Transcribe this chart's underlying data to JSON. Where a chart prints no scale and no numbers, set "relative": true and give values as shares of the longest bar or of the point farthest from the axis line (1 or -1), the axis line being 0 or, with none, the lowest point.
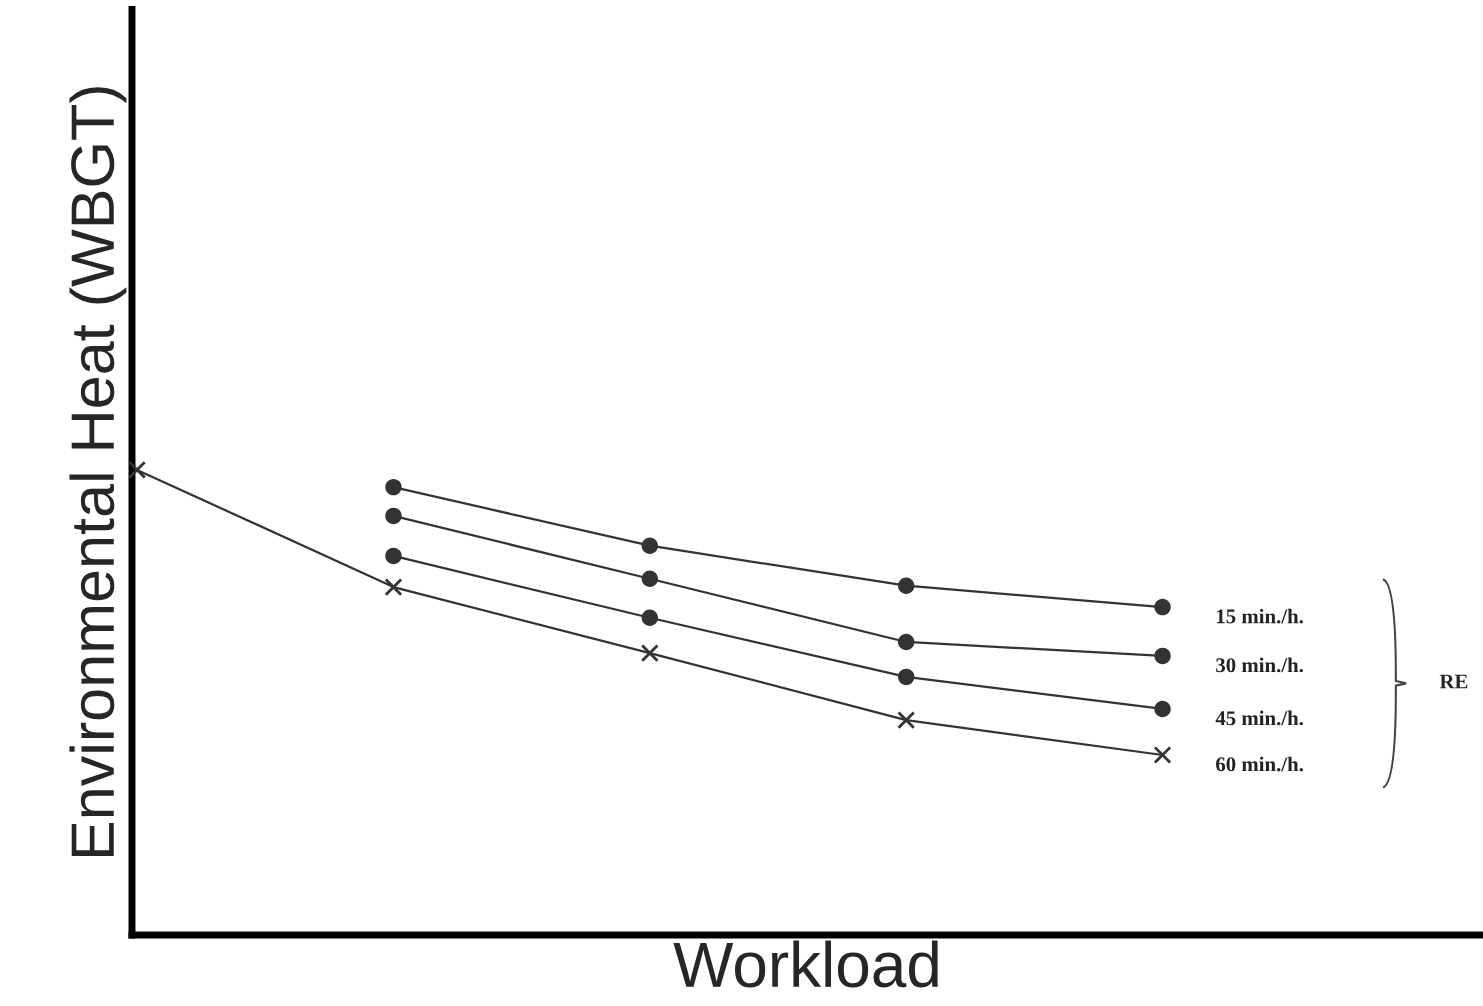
{
  "chart_data": {
    "type": "line",
    "relative": true,
    "xlabel": "Workload",
    "ylabel": "Environmental Heat (WBGT)",
    "categories": [
      null,
      null,
      null,
      null,
      null
    ],
    "series": [
      {
        "name": "15 min./h.",
        "color": "#333333",
        "marker": "circle",
        "values": [
          null,
          0.963,
          0.837,
          0.751,
          0.705
        ]
      },
      {
        "name": "30 min./h.",
        "color": "#333333",
        "marker": "circle",
        "values": [
          null,
          0.901,
          0.766,
          0.63,
          0.6
        ]
      },
      {
        "name": "45 min./h.",
        "color": "#333333",
        "marker": "circle",
        "values": [
          null,
          0.815,
          0.682,
          0.555,
          0.486
        ]
      },
      {
        "name": "60 min./h.",
        "color": "#333333",
        "marker": "cross",
        "values": [
          1.0,
          0.748,
          0.606,
          0.462,
          0.387
        ]
      }
    ],
    "annotations": [
      "RE"
    ],
    "legend": false,
    "tick_labels": false
  }
}
